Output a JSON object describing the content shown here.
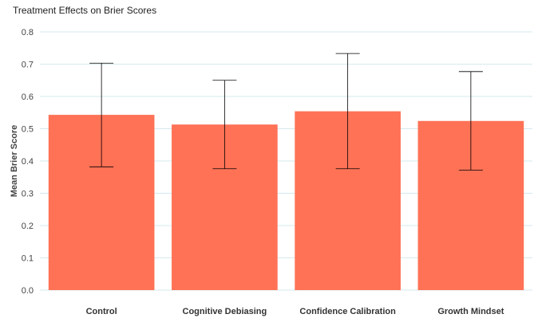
{
  "chart_data": {
    "type": "bar",
    "title": "Treatment Effects on Brier Scores",
    "xlabel": "",
    "ylabel": "Mean Brier Score",
    "categories": [
      "Control",
      "Cognitive Debiasing",
      "Confidence Calibration",
      "Growth Mindset"
    ],
    "values": [
      0.543,
      0.513,
      0.554,
      0.524
    ],
    "error_low": [
      0.382,
      0.376,
      0.376,
      0.372
    ],
    "error_high": [
      0.703,
      0.65,
      0.733,
      0.677
    ],
    "ylim": [
      0,
      0.8
    ],
    "yticks": [
      "0.0",
      "0.1",
      "0.2",
      "0.3",
      "0.4",
      "0.5",
      "0.6",
      "0.7",
      "0.8"
    ],
    "grid": true,
    "legend": "none",
    "bar_color": "#FF7256",
    "grid_color": "#D6E9ED"
  }
}
